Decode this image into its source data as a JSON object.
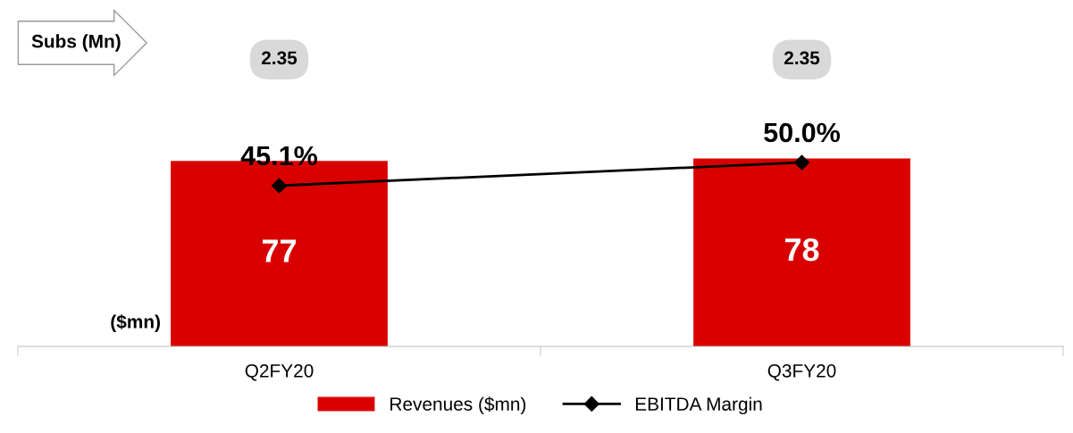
{
  "chart_data": {
    "type": "bar",
    "categories": [
      "Q2FY20",
      "Q3FY20"
    ],
    "series": [
      {
        "name": "Revenues ($mn)",
        "color": "#d90000",
        "values": [
          77,
          78
        ],
        "value_labels": [
          "77",
          "78"
        ]
      },
      {
        "name": "EBITDA Margin",
        "type": "line",
        "axis": "y2",
        "color": "#000000",
        "values": [
          45.1,
          50.0
        ],
        "value_labels": [
          "45.1%",
          "50.0%"
        ],
        "marker": "diamond"
      }
    ],
    "tick_labels": "x",
    "grid": false,
    "legend": "bottom",
    "annotations": [
      "Subs (Mn)",
      "2.35",
      "2.35",
      "($mn)"
    ]
  }
}
